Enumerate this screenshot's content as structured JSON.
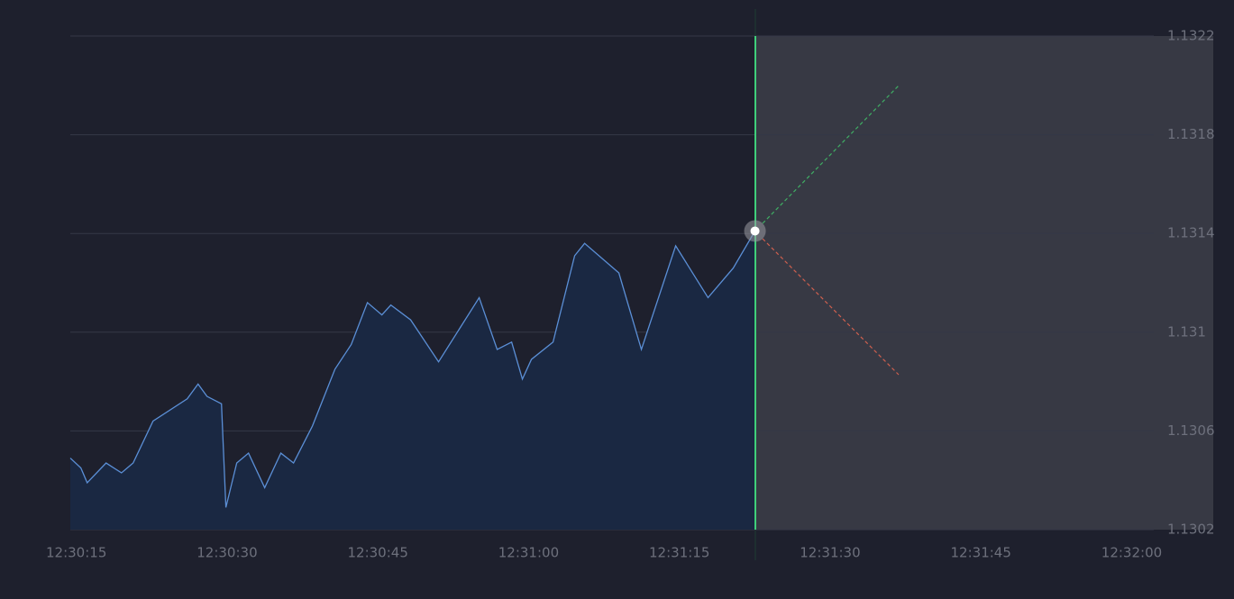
{
  "chart_data": {
    "type": "area",
    "x": [
      14.4,
      15.45,
      16.08,
      17.96,
      19.49,
      20.65,
      22.63,
      26.03,
      27.11,
      28.0,
      29.44,
      29.88,
      30.96,
      32.13,
      33.74,
      35.35,
      36.61,
      38.49,
      40.73,
      42.35,
      43.96,
      45.4,
      46.29,
      48.26,
      51.04,
      55.08,
      56.87,
      58.31,
      59.38,
      60.28,
      62.43,
      64.58,
      65.57,
      68.98,
      71.22,
      74.63,
      77.85,
      80.36,
      82.52
    ],
    "values": [
      1.13049,
      1.13045,
      1.13039,
      1.13047,
      1.13043,
      1.13047,
      1.13064,
      1.13073,
      1.13079,
      1.13074,
      1.13071,
      1.13029,
      1.13047,
      1.13051,
      1.13037,
      1.13051,
      1.13047,
      1.13062,
      1.13085,
      1.13095,
      1.13112,
      1.13107,
      1.13111,
      1.13105,
      1.13088,
      1.13114,
      1.13093,
      1.13096,
      1.13081,
      1.13089,
      1.13096,
      1.13131,
      1.13136,
      1.13124,
      1.13093,
      1.13135,
      1.13114,
      1.13126,
      1.13141
    ],
    "color": "#5b8fd6",
    "xlim": [
      14.4,
      122.2
    ],
    "xticks": [
      {
        "value": 15,
        "label": "12:30:15"
      },
      {
        "value": 30,
        "label": "12:30:30"
      },
      {
        "value": 45,
        "label": "12:30:45"
      },
      {
        "value": 60,
        "label": "12:31:00"
      },
      {
        "value": 75,
        "label": "12:31:15"
      },
      {
        "value": 90,
        "label": "12:31:30"
      },
      {
        "value": 105,
        "label": "12:31:45"
      },
      {
        "value": 120,
        "label": "12:32:00"
      }
    ],
    "ylim": [
      1.1302,
      1.1322
    ],
    "yticks": [
      1.1302,
      1.1306,
      1.131,
      1.1314,
      1.1318,
      1.1322
    ],
    "grid": true
  }
}
